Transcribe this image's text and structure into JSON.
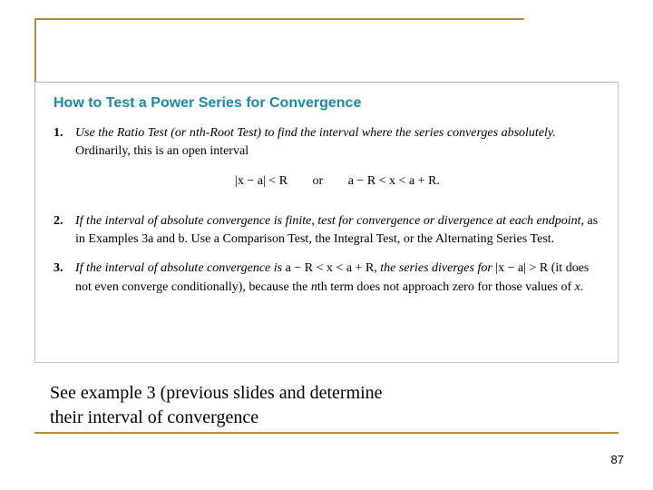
{
  "box": {
    "heading": "How to Test a Power Series for Convergence",
    "items": [
      {
        "num": "1.",
        "lead_italic": "Use the Ratio Test (or nth-Root Test) to find the interval where the series converges absolutely.",
        "rest_plain": " Ordinarily, this is an open interval",
        "formula_left": "|x − a| < R",
        "formula_mid": "or",
        "formula_right": "a − R < x < a + R."
      },
      {
        "num": "2.",
        "lead_italic": "If the interval of absolute convergence is finite, test for convergence or divergence at each endpoint,",
        "rest_plain": " as in Examples 3a and b. Use a Comparison Test, the Integral Test, or the Alternating Series Test."
      },
      {
        "num": "3.",
        "lead_italic": "If the interval of absolute convergence is ",
        "inline_math1": "a − R < x < a + R",
        "mid_italic": ", the series diverges for ",
        "inline_math2": "|x − a| > R",
        "rest_plain": " (it does not even converge conditionally), because the ",
        "nth": "n",
        "rest_plain2": "th term does not approach zero for those values of ",
        "xvar": "x",
        "period": "."
      }
    ]
  },
  "bottom_line1": "See example 3 (previous slides and determine",
  "bottom_line2": "their interval of convergence",
  "page_number": "87",
  "colors": {
    "accent_rule": "#b08d3e",
    "box_border": "#b8bfcc",
    "heading": "#1a8aa8"
  }
}
